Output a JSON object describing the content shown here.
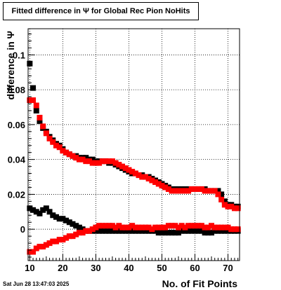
{
  "title": "Fitted difference in  Ψ  for Global Rec Pion NoHits",
  "timestamp": "Sat Jun 28 13:47:03 2025",
  "chart_data": {
    "type": "scatter",
    "title": "Fitted difference in  Ψ  for Global Rec Pion NoHits",
    "xlabel": "No. of Fit Points",
    "ylabel": "difference in  Ψ",
    "xlim": [
      9.5,
      73.5
    ],
    "ylim": [
      -0.018,
      0.115
    ],
    "xticks": [
      10,
      20,
      30,
      40,
      50,
      60,
      70
    ],
    "yticks": [
      0,
      0.02,
      0.04,
      0.06,
      0.08,
      0.1
    ],
    "ytick_labels": [
      "0",
      "0.02",
      "0.04",
      "0.06",
      "0.08",
      "0.1"
    ],
    "grid": true,
    "series": [
      {
        "color": "#000000",
        "x": [
          10,
          11,
          12,
          13,
          14,
          15,
          16,
          17,
          18,
          19,
          20,
          21,
          22,
          23,
          24,
          25,
          26,
          27,
          28,
          29,
          30,
          31,
          32,
          33,
          34,
          35,
          36,
          37,
          38,
          39,
          40,
          41,
          42,
          43,
          44,
          45,
          46,
          47,
          48,
          49,
          50,
          51,
          52,
          53,
          54,
          55,
          56,
          57,
          58,
          59,
          60,
          61,
          62,
          63,
          64,
          65,
          66,
          67,
          68,
          69,
          70,
          71,
          72,
          73
        ],
        "y": [
          0.095,
          0.081,
          0.068,
          0.062,
          0.058,
          0.056,
          0.053,
          0.051,
          0.049,
          0.048,
          0.046,
          0.044,
          0.043,
          0.042,
          0.042,
          0.041,
          0.041,
          0.041,
          0.04,
          0.04,
          0.039,
          0.039,
          0.039,
          0.039,
          0.038,
          0.038,
          0.037,
          0.036,
          0.035,
          0.034,
          0.033,
          0.032,
          0.032,
          0.031,
          0.031,
          0.03,
          0.03,
          0.029,
          0.028,
          0.027,
          0.026,
          0.025,
          0.024,
          0.023,
          0.023,
          0.023,
          0.023,
          0.023,
          0.023,
          0.023,
          0.023,
          0.023,
          0.023,
          0.023,
          0.022,
          0.022,
          0.022,
          0.022,
          0.02,
          0.016,
          0.014,
          0.014,
          0.013,
          0.013
        ]
      },
      {
        "color": "#ff0000",
        "x": [
          10,
          11,
          12,
          13,
          14,
          15,
          16,
          17,
          18,
          19,
          20,
          21,
          22,
          23,
          24,
          25,
          26,
          27,
          28,
          29,
          30,
          31,
          32,
          33,
          34,
          35,
          36,
          37,
          38,
          39,
          40,
          41,
          42,
          43,
          44,
          45,
          46,
          47,
          48,
          49,
          50,
          51,
          52,
          53,
          54,
          55,
          56,
          57,
          58,
          59,
          60,
          61,
          62,
          63,
          64,
          65,
          66,
          67,
          68,
          69,
          70,
          71,
          72,
          73
        ],
        "y": [
          0.074,
          0.074,
          0.071,
          0.064,
          0.059,
          0.055,
          0.052,
          0.05,
          0.048,
          0.047,
          0.045,
          0.044,
          0.043,
          0.042,
          0.041,
          0.04,
          0.04,
          0.039,
          0.039,
          0.038,
          0.038,
          0.038,
          0.039,
          0.039,
          0.039,
          0.039,
          0.038,
          0.037,
          0.036,
          0.035,
          0.034,
          0.033,
          0.032,
          0.031,
          0.03,
          0.03,
          0.029,
          0.028,
          0.027,
          0.026,
          0.025,
          0.024,
          0.023,
          0.022,
          0.022,
          0.022,
          0.022,
          0.022,
          0.022,
          0.023,
          0.023,
          0.023,
          0.023,
          0.022,
          0.022,
          0.022,
          0.022,
          0.02,
          0.017,
          0.014,
          0.013,
          0.013,
          0.012,
          0.012
        ]
      },
      {
        "color": "#000000",
        "x": [
          10,
          11,
          12,
          13,
          14,
          15,
          16,
          17,
          18,
          19,
          20,
          21,
          22,
          23,
          24,
          25,
          26,
          27,
          28,
          29,
          30,
          31,
          32,
          33,
          34,
          35,
          36,
          37,
          38,
          39,
          40,
          41,
          42,
          43,
          44,
          45,
          46,
          47,
          48,
          49,
          50,
          51,
          52,
          53,
          54,
          55,
          56,
          57,
          58,
          59,
          60,
          61,
          62,
          63,
          64,
          65,
          66,
          67,
          68,
          69,
          70,
          71,
          72,
          73
        ],
        "y": [
          0.012,
          0.011,
          0.01,
          0.009,
          0.011,
          0.012,
          0.01,
          0.008,
          0.007,
          0.006,
          0.006,
          0.005,
          0.004,
          0.003,
          0.002,
          0.001,
          0.0,
          -0.001,
          -0.001,
          -0.001,
          -0.001,
          -0.001,
          -0.001,
          -0.001,
          -0.001,
          -0.001,
          -0.001,
          -0.001,
          -0.001,
          -0.001,
          -0.001,
          -0.001,
          -0.001,
          -0.001,
          -0.001,
          -0.001,
          -0.001,
          -0.001,
          -0.001,
          -0.002,
          -0.002,
          -0.002,
          -0.002,
          -0.002,
          -0.002,
          -0.002,
          -0.001,
          -0.001,
          -0.001,
          -0.001,
          -0.001,
          -0.001,
          -0.001,
          -0.002,
          -0.002,
          -0.002,
          -0.001,
          -0.001,
          -0.001,
          -0.001,
          -0.001,
          -0.001,
          -0.001,
          -0.001
        ]
      },
      {
        "color": "#ff0000",
        "x": [
          10,
          11,
          12,
          13,
          14,
          15,
          16,
          17,
          18,
          19,
          20,
          21,
          22,
          23,
          24,
          25,
          26,
          27,
          28,
          29,
          30,
          31,
          32,
          33,
          34,
          35,
          36,
          37,
          38,
          39,
          40,
          41,
          42,
          43,
          44,
          45,
          46,
          47,
          48,
          49,
          50,
          51,
          52,
          53,
          54,
          55,
          56,
          57,
          58,
          59,
          60,
          61,
          62,
          63,
          64,
          65,
          66,
          67,
          68,
          69,
          70,
          71,
          72,
          73
        ],
        "y": [
          -0.013,
          -0.013,
          -0.011,
          -0.01,
          -0.01,
          -0.009,
          -0.008,
          -0.007,
          -0.007,
          -0.006,
          -0.006,
          -0.005,
          -0.004,
          -0.004,
          -0.003,
          -0.002,
          -0.002,
          -0.001,
          -0.001,
          0.0,
          0.001,
          0.002,
          0.002,
          0.002,
          0.002,
          0.002,
          0.001,
          0.002,
          0.001,
          0.001,
          0.001,
          0.002,
          0.001,
          0.001,
          0.001,
          0.001,
          0.001,
          0.0,
          0.001,
          0.001,
          0.001,
          0.001,
          0.002,
          0.002,
          0.002,
          0.001,
          0.002,
          0.001,
          0.002,
          0.002,
          0.002,
          0.002,
          0.002,
          0.001,
          0.001,
          0.002,
          0.001,
          0.001,
          0.001,
          0.001,
          0.001,
          0.0,
          0.0,
          0.0
        ]
      }
    ]
  }
}
